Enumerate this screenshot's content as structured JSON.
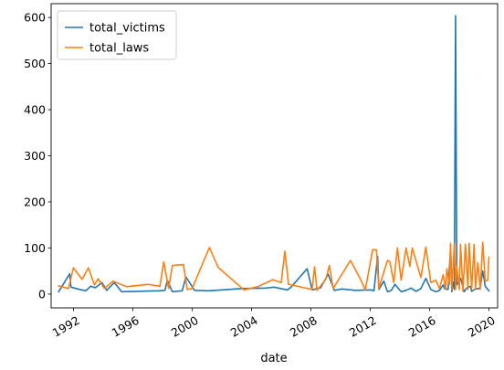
{
  "chart_data": {
    "type": "line",
    "title": "",
    "xlabel": "date",
    "ylabel": "",
    "x_axis_type": "date",
    "xlim": [
      "1990-07-01",
      "2020-08-01"
    ],
    "ylim": [
      -30,
      630
    ],
    "x_ticks": [
      "1992",
      "1996",
      "2000",
      "2004",
      "2008",
      "2012",
      "2016",
      "2020"
    ],
    "y_ticks": [
      0,
      100,
      200,
      300,
      400,
      500,
      600
    ],
    "grid": false,
    "legend_position": "top-left",
    "series": [
      {
        "name": "total_victims",
        "color": "#1f77b4",
        "points": [
          [
            "1991-01-01",
            5
          ],
          [
            "1991-10-01",
            44
          ],
          [
            "1991-11-01",
            15
          ],
          [
            "1992-06-01",
            10
          ],
          [
            "1992-11-01",
            7
          ],
          [
            "1993-03-01",
            17
          ],
          [
            "1993-05-01",
            15
          ],
          [
            "1993-07-01",
            14
          ],
          [
            "1993-12-01",
            25
          ],
          [
            "1994-04-01",
            8
          ],
          [
            "1994-10-01",
            25
          ],
          [
            "1995-01-01",
            15
          ],
          [
            "1995-04-01",
            5
          ],
          [
            "1996-07-01",
            6
          ],
          [
            "1997-10-01",
            7
          ],
          [
            "1998-03-01",
            8
          ],
          [
            "1998-05-01",
            30
          ],
          [
            "1998-09-01",
            5
          ],
          [
            "1999-05-01",
            7
          ],
          [
            "1999-08-01",
            37
          ],
          [
            "2000-03-01",
            8
          ],
          [
            "2001-02-01",
            7
          ],
          [
            "2003-06-01",
            12
          ],
          [
            "2005-01-01",
            13
          ],
          [
            "2005-07-01",
            15
          ],
          [
            "2006-06-01",
            9
          ],
          [
            "2006-09-01",
            15
          ],
          [
            "2007-10-01",
            55
          ],
          [
            "2008-02-01",
            9
          ],
          [
            "2008-09-01",
            14
          ],
          [
            "2009-03-01",
            43
          ],
          [
            "2009-08-01",
            8
          ],
          [
            "2010-02-01",
            11
          ],
          [
            "2011-01-01",
            8
          ],
          [
            "2012-02-01",
            9
          ],
          [
            "2012-04-01",
            7
          ],
          [
            "2012-07-01",
            82
          ],
          [
            "2012-08-01",
            10
          ],
          [
            "2012-12-01",
            28
          ],
          [
            "2013-03-01",
            5
          ],
          [
            "2013-06-01",
            8
          ],
          [
            "2013-09-01",
            21
          ],
          [
            "2014-02-01",
            5
          ],
          [
            "2014-06-01",
            8
          ],
          [
            "2014-10-01",
            13
          ],
          [
            "2015-02-01",
            6
          ],
          [
            "2015-06-01",
            12
          ],
          [
            "2015-10-01",
            34
          ],
          [
            "2016-02-01",
            10
          ],
          [
            "2016-06-01",
            5
          ],
          [
            "2016-09-01",
            8
          ],
          [
            "2016-12-01",
            20
          ],
          [
            "2017-01-01",
            12
          ],
          [
            "2017-04-01",
            10
          ],
          [
            "2017-06-01",
            100
          ],
          [
            "2017-07-01",
            5
          ],
          [
            "2017-08-01",
            26
          ],
          [
            "2017-09-01",
            10
          ],
          [
            "2017-10-01",
            604
          ],
          [
            "2017-11-01",
            20
          ],
          [
            "2018-02-01",
            34
          ],
          [
            "2018-05-01",
            5
          ],
          [
            "2018-07-01",
            13
          ],
          [
            "2018-10-01",
            17
          ],
          [
            "2018-11-01",
            6
          ],
          [
            "2019-02-01",
            11
          ],
          [
            "2019-05-01",
            12
          ],
          [
            "2019-06-01",
            15
          ],
          [
            "2019-08-01",
            50
          ],
          [
            "2019-10-01",
            17
          ],
          [
            "2020-01-01",
            7
          ]
        ]
      },
      {
        "name": "total_laws",
        "color": "#ff7f0e",
        "points": [
          [
            "1991-01-01",
            18
          ],
          [
            "1991-09-01",
            12
          ],
          [
            "1992-01-01",
            57
          ],
          [
            "1992-08-01",
            32
          ],
          [
            "1993-01-01",
            57
          ],
          [
            "1993-06-01",
            20
          ],
          [
            "1993-09-01",
            33
          ],
          [
            "1994-02-01",
            12
          ],
          [
            "1994-09-01",
            28
          ],
          [
            "1995-08-01",
            16
          ],
          [
            "1997-01-01",
            21
          ],
          [
            "1997-11-01",
            17
          ],
          [
            "1998-02-01",
            70
          ],
          [
            "1998-06-01",
            12
          ],
          [
            "1998-09-01",
            62
          ],
          [
            "1999-06-01",
            64
          ],
          [
            "1999-09-01",
            10
          ],
          [
            "2000-01-01",
            12
          ],
          [
            "2001-03-01",
            101
          ],
          [
            "2001-10-01",
            58
          ],
          [
            "2003-07-01",
            9
          ],
          [
            "2004-06-01",
            16
          ],
          [
            "2005-06-01",
            31
          ],
          [
            "2006-01-01",
            25
          ],
          [
            "2006-04-01",
            93
          ],
          [
            "2006-07-01",
            21
          ],
          [
            "2007-09-01",
            13
          ],
          [
            "2008-02-01",
            10
          ],
          [
            "2008-04-01",
            59
          ],
          [
            "2008-06-01",
            8
          ],
          [
            "2009-01-01",
            32
          ],
          [
            "2009-04-01",
            62
          ],
          [
            "2009-07-01",
            12
          ],
          [
            "2010-09-01",
            73
          ],
          [
            "2011-05-01",
            33
          ],
          [
            "2011-09-01",
            9
          ],
          [
            "2012-03-01",
            96
          ],
          [
            "2012-06-01",
            96
          ],
          [
            "2012-08-01",
            12
          ],
          [
            "2012-10-01",
            30
          ],
          [
            "2013-03-01",
            73
          ],
          [
            "2013-05-01",
            70
          ],
          [
            "2013-08-01",
            25
          ],
          [
            "2013-11-01",
            100
          ],
          [
            "2014-02-01",
            30
          ],
          [
            "2014-06-01",
            100
          ],
          [
            "2014-09-01",
            60
          ],
          [
            "2014-11-01",
            100
          ],
          [
            "2015-06-01",
            36
          ],
          [
            "2015-10-01",
            102
          ],
          [
            "2016-02-01",
            25
          ],
          [
            "2016-06-01",
            30
          ],
          [
            "2016-09-01",
            12
          ],
          [
            "2016-12-01",
            42
          ],
          [
            "2017-02-01",
            10
          ],
          [
            "2017-03-01",
            55
          ],
          [
            "2017-05-01",
            20
          ],
          [
            "2017-06-01",
            110
          ],
          [
            "2017-07-01",
            10
          ],
          [
            "2017-09-01",
            110
          ],
          [
            "2017-10-01",
            10
          ],
          [
            "2017-11-01",
            60
          ],
          [
            "2018-01-01",
            10
          ],
          [
            "2018-02-01",
            108
          ],
          [
            "2018-04-01",
            6
          ],
          [
            "2018-06-01",
            108
          ],
          [
            "2018-08-01",
            10
          ],
          [
            "2018-09-01",
            110
          ],
          [
            "2018-11-01",
            12
          ],
          [
            "2019-01-01",
            108
          ],
          [
            "2019-02-01",
            10
          ],
          [
            "2019-04-01",
            68
          ],
          [
            "2019-06-01",
            10
          ],
          [
            "2019-08-01",
            112
          ],
          [
            "2019-10-01",
            28
          ],
          [
            "2019-12-01",
            30
          ],
          [
            "2020-01-01",
            80
          ]
        ]
      }
    ]
  }
}
